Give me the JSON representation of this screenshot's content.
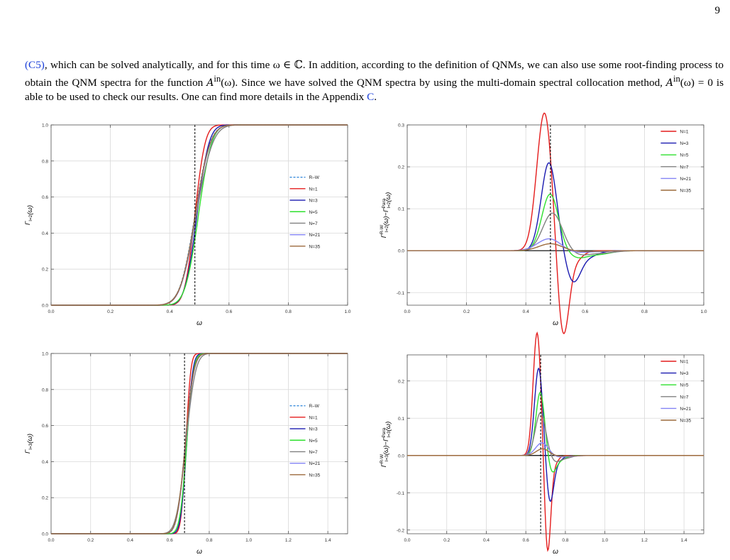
{
  "page_number": "9",
  "intro": {
    "ref_c5": "(C5)",
    "part1": ", which can be solved analytically, and for this time ω ∈ ℂ. In addition, according to the definition of QNMs, we can also use some root-finding process to obtain the QNM spectra for the function ",
    "func": "A",
    "func_sup": "in",
    "func_arg": "(ω)",
    "part2": ". Since we have solved the QNM spectra by using the multi-domain spectral collocation method, ",
    "eq": "A",
    "eq_sup": "in",
    "eq_rest": "(ω) = 0",
    "part3": " is able to be used to check our results. One can find more details in the Appendix ",
    "ref_c": "C",
    "part4": "."
  },
  "chart_data": [
    {
      "id": "tl",
      "type": "line",
      "xlabel": "ω",
      "ylabel": "Γ_{l=2}(ω)",
      "xlim": [
        0,
        1
      ],
      "ylim": [
        0,
        1
      ],
      "xticks": [
        0,
        0.2,
        0.4,
        0.6,
        0.8,
        1.0
      ],
      "xticklabels": [
        "0.0",
        "0.2",
        "0.4",
        "0.6",
        "0.8",
        "1.0"
      ],
      "yticks": [
        0,
        0.2,
        0.4,
        0.6,
        0.8,
        1.0
      ],
      "yticklabels": [
        "0.0",
        "0.2",
        "0.4",
        "0.6",
        "0.8",
        "1.0"
      ],
      "grid": true,
      "vline": 0.485,
      "legend_pos": "center-right",
      "series": [
        {
          "name": "R–W",
          "color": "#3b8ddb",
          "dash": true,
          "x0": 0.485,
          "w": 0.025
        },
        {
          "name": "N=1",
          "color": "#e41c1c",
          "x0": 0.485,
          "w": 0.017
        },
        {
          "name": "N=3",
          "color": "#1a1ab0",
          "x0": 0.492,
          "w": 0.02
        },
        {
          "name": "N=5",
          "color": "#2ee02e",
          "x0": 0.497,
          "w": 0.022
        },
        {
          "name": "N=7",
          "color": "#808080",
          "x0": 0.49,
          "w": 0.027
        },
        {
          "name": "N=21",
          "color": "#8484f5",
          "x0": 0.487,
          "w": 0.025
        },
        {
          "name": "N=35",
          "color": "#9c6a3c",
          "x0": 0.486,
          "w": 0.025
        }
      ]
    },
    {
      "id": "tr",
      "type": "line",
      "xlabel": "ω",
      "ylabel": "Γ^{R-W}_{l=2}(ω)−Γ^{Para}_{l=2}(ω)",
      "xlim": [
        0,
        1
      ],
      "ylim": [
        -0.13,
        0.3
      ],
      "xticks": [
        0,
        0.2,
        0.4,
        0.6,
        0.8,
        1.0
      ],
      "xticklabels": [
        "0.0",
        "0.2",
        "0.4",
        "0.6",
        "0.8",
        "1.0"
      ],
      "yticks": [
        -0.1,
        0,
        0.1,
        0.2,
        0.3
      ],
      "yticklabels": [
        "-0.1",
        "0.0",
        "0.1",
        "0.2",
        "0.3"
      ],
      "grid": true,
      "vline": 0.483,
      "legend_pos": "top-right",
      "zero_line": true,
      "series": [
        {
          "name": "N=1",
          "color": "#e41c1c",
          "a": 0.33,
          "b": 0.21,
          "c": 0.463,
          "s1": 0.026,
          "d": 0.525,
          "s2": 0.02
        },
        {
          "name": "N=3",
          "color": "#1a1ab0",
          "a": 0.21,
          "b": 0.073,
          "c": 0.478,
          "s1": 0.026,
          "d": 0.56,
          "s2": 0.025
        },
        {
          "name": "N=5",
          "color": "#2ee02e",
          "a": 0.135,
          "b": 0.0155,
          "c": 0.482,
          "s1": 0.028,
          "d": 0.575,
          "s2": 0.033
        },
        {
          "name": "N=7",
          "color": "#808080",
          "a": 0.09,
          "b": 0.0095,
          "c": 0.49,
          "s1": 0.033,
          "d": 0.58,
          "s2": 0.035
        },
        {
          "name": "N=21",
          "color": "#8484f5",
          "a": 0.029,
          "b": 0.005,
          "c": 0.48,
          "s1": 0.04,
          "d": 0.56,
          "s2": 0.04
        },
        {
          "name": "N=35",
          "color": "#9c6a3c",
          "a": 0.017,
          "b": 0.002,
          "c": 0.485,
          "s1": 0.04,
          "d": 0.56,
          "s2": 0.04
        }
      ]
    },
    {
      "id": "bl",
      "type": "line",
      "xlabel": "ω",
      "ylabel": "Γ_{l=3}(ω)",
      "xlim": [
        0,
        1.5
      ],
      "ylim": [
        0,
        1
      ],
      "xticks": [
        0,
        0.2,
        0.4,
        0.6,
        0.8,
        1.0,
        1.2,
        1.4
      ],
      "xticklabels": [
        "0.0",
        "0.2",
        "0.4",
        "0.6",
        "0.8",
        "1.0",
        "1.2",
        "1.4"
      ],
      "yticks": [
        0,
        0.2,
        0.4,
        0.6,
        0.8,
        1.0
      ],
      "yticklabels": [
        "0.0",
        "0.2",
        "0.4",
        "0.6",
        "0.8",
        "1.0"
      ],
      "grid": true,
      "vline": 0.675,
      "legend_pos": "center-right",
      "series": [
        {
          "name": "R–W",
          "color": "#3b8ddb",
          "dash": true,
          "x0": 0.678,
          "w": 0.02
        },
        {
          "name": "N=1",
          "color": "#e41c1c",
          "x0": 0.682,
          "w": 0.012
        },
        {
          "name": "N=3",
          "color": "#1a1ab0",
          "x0": 0.686,
          "w": 0.015
        },
        {
          "name": "N=5",
          "color": "#2ee02e",
          "x0": 0.686,
          "w": 0.017
        },
        {
          "name": "N=7",
          "color": "#808080",
          "x0": 0.682,
          "w": 0.024
        },
        {
          "name": "N=21",
          "color": "#8484f5",
          "x0": 0.68,
          "w": 0.021
        },
        {
          "name": "N=35",
          "color": "#9c6a3c",
          "x0": 0.679,
          "w": 0.021
        }
      ]
    },
    {
      "id": "br",
      "type": "line",
      "xlabel": "ω",
      "ylabel": "Γ^{R-W}_{l=3}(ω)−Γ^{Para}_{l=3}(ω)",
      "xlim": [
        0,
        1.5
      ],
      "ylim": [
        -0.21,
        0.27
      ],
      "xticks": [
        0,
        0.2,
        0.4,
        0.6,
        0.8,
        1.0,
        1.2,
        1.4
      ],
      "xticklabels": [
        "0.0",
        "0.2",
        "0.4",
        "0.6",
        "0.8",
        "1.0",
        "1.2",
        "1.4"
      ],
      "yticks": [
        -0.2,
        -0.1,
        0,
        0.1,
        0.2
      ],
      "yticklabels": [
        "-0.2",
        "-0.1",
        "0.0",
        "0.1",
        "0.2"
      ],
      "grid": true,
      "vline": 0.675,
      "legend_pos": "top-right",
      "zero_line": true,
      "series": [
        {
          "name": "N=1",
          "color": "#e41c1c",
          "a": 0.33,
          "b": 0.26,
          "c": 0.657,
          "s1": 0.02,
          "d": 0.71,
          "s2": 0.016
        },
        {
          "name": "N=3",
          "color": "#1a1ab0",
          "a": 0.235,
          "b": 0.125,
          "c": 0.665,
          "s1": 0.021,
          "d": 0.722,
          "s2": 0.019
        },
        {
          "name": "N=5",
          "color": "#2ee02e",
          "a": 0.17,
          "b": 0.045,
          "c": 0.673,
          "s1": 0.022,
          "d": 0.733,
          "s2": 0.021
        },
        {
          "name": "N=7",
          "color": "#808080",
          "a": 0.115,
          "b": 0.016,
          "c": 0.674,
          "s1": 0.026,
          "d": 0.75,
          "s2": 0.024
        },
        {
          "name": "N=21",
          "color": "#8484f5",
          "a": 0.034,
          "b": 0.004,
          "c": 0.682,
          "s1": 0.032,
          "d": 0.76,
          "s2": 0.03
        },
        {
          "name": "N=35",
          "color": "#9c6a3c",
          "a": 0.018,
          "b": 0.0015,
          "c": 0.685,
          "s1": 0.032,
          "d": 0.76,
          "s2": 0.03
        }
      ]
    }
  ]
}
